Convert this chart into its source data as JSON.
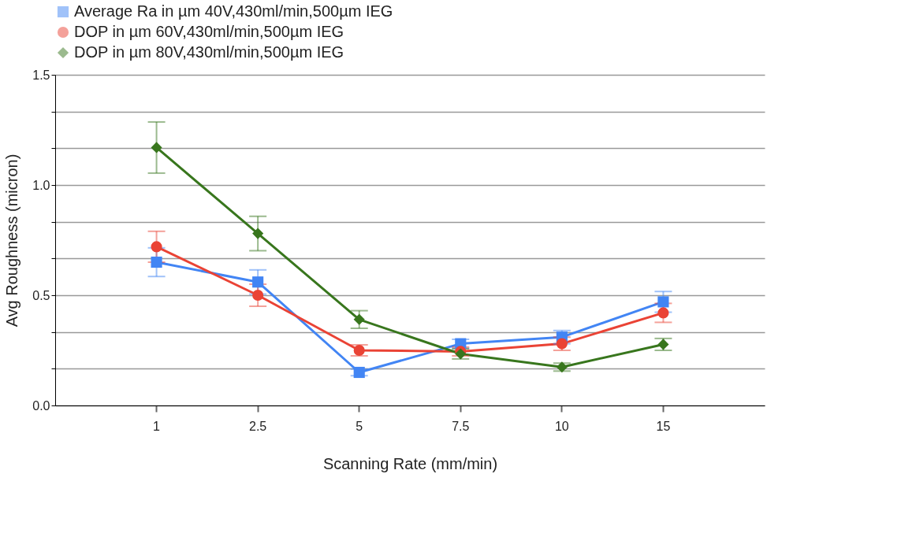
{
  "chart_data": {
    "type": "line",
    "xlabel": "Scanning Rate (mm/min)",
    "ylabel": "Avg Roughness (micron)",
    "categories": [
      "1",
      "2.5",
      "5",
      "7.5",
      "10",
      "15"
    ],
    "series": [
      {
        "name": "Average Ra in µm 40V,430ml/min,500µm IEG",
        "color": "#4285f4",
        "marker": "square",
        "values": [
          0.65,
          0.56,
          0.15,
          0.28,
          0.31,
          0.47
        ],
        "errors": [
          0.065,
          0.055,
          0.015,
          0.02,
          0.03,
          0.047
        ]
      },
      {
        "name": "DOP in µm 60V,430ml/min,500µm IEG",
        "color": "#ea4335",
        "marker": "circle",
        "values": [
          0.72,
          0.5,
          0.25,
          0.245,
          0.28,
          0.42
        ],
        "errors": [
          0.07,
          0.05,
          0.025,
          0.02,
          0.03,
          0.043
        ]
      },
      {
        "name": "DOP in µm 80V,430ml/min,500µm IEG",
        "color": "#38761d",
        "marker": "diamond",
        "values": [
          1.17,
          0.78,
          0.39,
          0.234,
          0.174,
          0.277
        ],
        "errors": [
          0.116,
          0.078,
          0.04,
          0.023,
          0.018,
          0.027
        ]
      }
    ],
    "ylim": [
      0,
      1.5
    ],
    "yticks": [
      {
        "value": 0,
        "label": "0.0"
      },
      {
        "value": 0.1667,
        "label": null
      },
      {
        "value": 0.3333,
        "label": null
      },
      {
        "value": 0.5,
        "label": "0.5"
      },
      {
        "value": 0.6667,
        "label": null
      },
      {
        "value": 0.8333,
        "label": null
      },
      {
        "value": 1.0,
        "label": "1.0"
      },
      {
        "value": 1.1667,
        "label": null
      },
      {
        "value": 1.3333,
        "label": null
      },
      {
        "value": 1.5,
        "label": "1.5"
      }
    ],
    "grid": "y",
    "legend": "top",
    "line_style": "solid"
  }
}
